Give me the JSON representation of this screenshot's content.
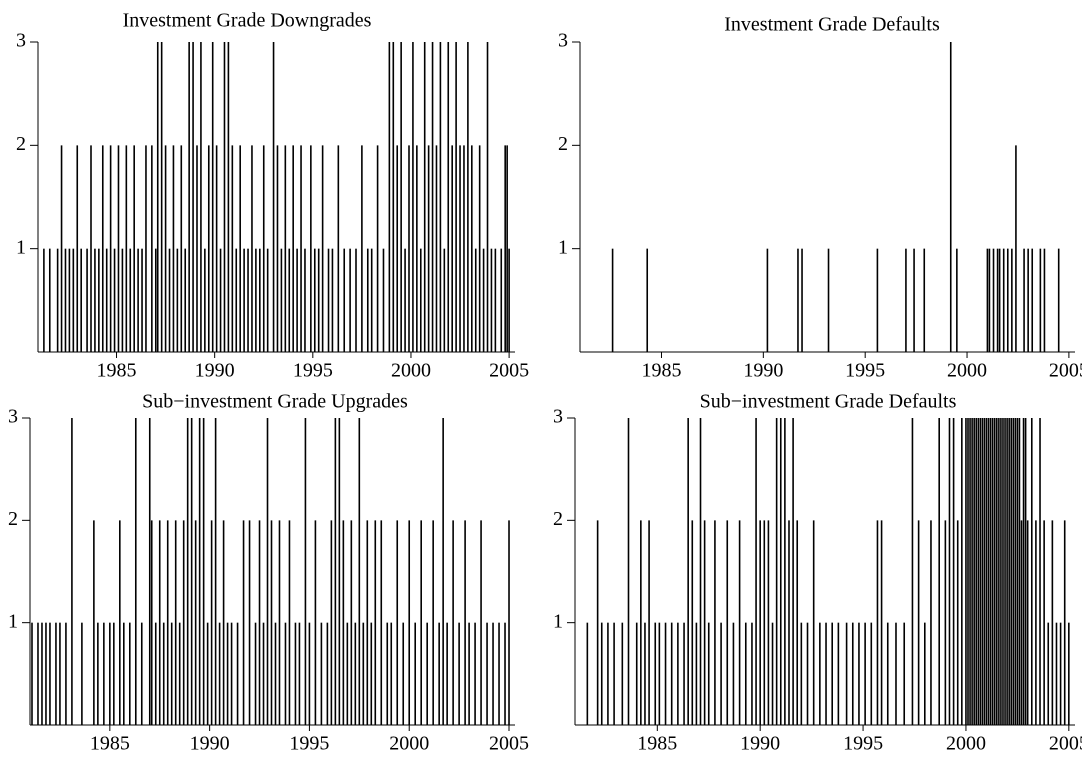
{
  "chart_data": [
    {
      "type": "spike",
      "title": "Investment Grade Downgrades",
      "color": "#000000",
      "xlim": [
        1981,
        2005.3
      ],
      "ylim": [
        0,
        3
      ],
      "xticks": [
        1985,
        1990,
        1995,
        2000,
        2005
      ],
      "yticks": [
        1,
        2,
        3
      ],
      "x": [
        1981.3,
        1981.6,
        1982.0,
        1982.2,
        1982.4,
        1982.6,
        1982.8,
        1983.0,
        1983.2,
        1983.5,
        1983.7,
        1983.9,
        1984.1,
        1984.3,
        1984.5,
        1984.7,
        1984.9,
        1985.1,
        1985.3,
        1985.5,
        1985.7,
        1985.9,
        1986.1,
        1986.3,
        1986.5,
        1986.8,
        1987.0,
        1987.1,
        1987.3,
        1987.5,
        1987.7,
        1987.9,
        1988.1,
        1988.3,
        1988.5,
        1988.7,
        1988.9,
        1989.1,
        1989.3,
        1989.5,
        1989.7,
        1989.9,
        1990.1,
        1990.3,
        1990.5,
        1990.7,
        1990.9,
        1991.1,
        1991.3,
        1991.5,
        1991.7,
        1991.9,
        1992.1,
        1992.3,
        1992.5,
        1992.7,
        1993.0,
        1993.2,
        1993.4,
        1993.6,
        1993.8,
        1994.0,
        1994.2,
        1994.4,
        1994.6,
        1994.9,
        1995.1,
        1995.3,
        1995.5,
        1995.8,
        1996.0,
        1996.3,
        1996.6,
        1996.9,
        1997.2,
        1997.5,
        1997.8,
        1998.0,
        1998.3,
        1998.6,
        1998.9,
        1999.1,
        1999.3,
        1999.5,
        1999.7,
        1999.9,
        2000.1,
        2000.3,
        2000.5,
        2000.7,
        2000.9,
        2001.1,
        2001.3,
        2001.5,
        2001.7,
        2001.9,
        2002.1,
        2002.3,
        2002.5,
        2002.7,
        2002.9,
        2003.1,
        2003.3,
        2003.5,
        2003.7,
        2003.9,
        2004.1,
        2004.3,
        2004.6,
        2004.8,
        2004.9,
        2005.0
      ],
      "values": [
        1,
        1,
        1,
        2,
        1,
        1,
        1,
        2,
        1,
        1,
        2,
        1,
        1,
        2,
        1,
        2,
        1,
        2,
        1,
        2,
        1,
        2,
        1,
        1,
        2,
        2,
        1,
        3,
        3,
        2,
        1,
        2,
        1,
        2,
        1,
        3,
        3,
        2,
        3,
        1,
        2,
        3,
        2,
        1,
        3,
        3,
        2,
        1,
        2,
        1,
        1,
        2,
        1,
        1,
        2,
        1,
        3,
        2,
        1,
        2,
        1,
        2,
        1,
        2,
        1,
        2,
        1,
        1,
        2,
        1,
        1,
        2,
        1,
        1,
        1,
        2,
        1,
        1,
        2,
        1,
        3,
        3,
        2,
        3,
        1,
        2,
        3,
        2,
        1,
        3,
        2,
        3,
        2,
        3,
        1,
        3,
        2,
        3,
        2,
        2,
        3,
        2,
        1,
        2,
        1,
        3,
        1,
        1,
        1,
        2,
        2,
        1
      ]
    },
    {
      "type": "spike",
      "title": "Investment Grade Defaults",
      "color": "#000000",
      "xlim": [
        1981,
        2005.3
      ],
      "ylim": [
        0,
        3
      ],
      "xticks": [
        1985,
        1990,
        1995,
        2000,
        2005
      ],
      "yticks": [
        1,
        2,
        3
      ],
      "x": [
        1982.6,
        1984.3,
        1990.2,
        1991.7,
        1991.9,
        1993.2,
        1995.6,
        1997.0,
        1997.4,
        1997.9,
        1999.2,
        1999.5,
        2001.0,
        2001.1,
        2001.3,
        2001.5,
        2001.6,
        2001.8,
        2002.0,
        2002.2,
        2002.4,
        2002.8,
        2003.0,
        2003.2,
        2003.6,
        2003.8,
        2004.5
      ],
      "values": [
        1,
        1,
        1,
        1,
        1,
        1,
        1,
        1,
        1,
        1,
        3,
        1,
        1,
        1,
        1,
        1,
        1,
        1,
        1,
        1,
        2,
        1,
        1,
        1,
        1,
        1,
        1
      ]
    },
    {
      "type": "spike",
      "title": "Sub−investment Grade Upgrades",
      "color": "#000000",
      "xlim": [
        1981,
        2005.3
      ],
      "ylim": [
        0,
        3
      ],
      "xticks": [
        1985,
        1990,
        1995,
        2000,
        2005
      ],
      "yticks": [
        1,
        2,
        3
      ],
      "x": [
        1981.1,
        1981.4,
        1981.6,
        1981.8,
        1982.0,
        1982.3,
        1982.5,
        1982.8,
        1983.1,
        1983.6,
        1984.2,
        1984.4,
        1984.7,
        1985.0,
        1985.2,
        1985.5,
        1985.7,
        1986.0,
        1986.3,
        1986.6,
        1987.0,
        1987.1,
        1987.3,
        1987.5,
        1987.7,
        1987.9,
        1988.1,
        1988.3,
        1988.5,
        1988.7,
        1988.9,
        1989.1,
        1989.3,
        1989.5,
        1989.7,
        1989.9,
        1990.1,
        1990.3,
        1990.5,
        1990.7,
        1990.9,
        1991.1,
        1991.4,
        1991.7,
        1992.0,
        1992.3,
        1992.5,
        1992.7,
        1992.9,
        1993.1,
        1993.3,
        1993.5,
        1993.8,
        1994.0,
        1994.3,
        1994.5,
        1994.8,
        1995.0,
        1995.3,
        1995.6,
        1995.9,
        1996.1,
        1996.3,
        1996.5,
        1996.7,
        1996.9,
        1997.1,
        1997.3,
        1997.5,
        1997.7,
        1997.9,
        1998.1,
        1998.3,
        1998.6,
        1998.9,
        1999.1,
        1999.4,
        1999.7,
        2000.0,
        2000.3,
        2000.6,
        2000.9,
        2001.2,
        2001.5,
        2001.7,
        2001.9,
        2002.2,
        2002.5,
        2002.8,
        2003.0,
        2003.3,
        2003.6,
        2003.9,
        2004.2,
        2004.5,
        2004.8,
        2005.0
      ],
      "values": [
        1,
        1,
        1,
        1,
        1,
        1,
        1,
        1,
        3,
        1,
        2,
        1,
        1,
        1,
        1,
        2,
        1,
        1,
        3,
        1,
        3,
        2,
        1,
        2,
        1,
        2,
        1,
        2,
        1,
        2,
        3,
        3,
        2,
        3,
        3,
        1,
        2,
        3,
        1,
        2,
        1,
        1,
        1,
        2,
        2,
        1,
        2,
        1,
        3,
        2,
        1,
        2,
        1,
        2,
        1,
        1,
        3,
        1,
        2,
        1,
        1,
        2,
        3,
        3,
        2,
        1,
        2,
        1,
        3,
        1,
        2,
        1,
        2,
        2,
        1,
        1,
        2,
        1,
        2,
        1,
        2,
        1,
        2,
        1,
        3,
        1,
        2,
        1,
        2,
        1,
        1,
        2,
        1,
        1,
        1,
        1,
        2
      ]
    },
    {
      "type": "spike",
      "title": "Sub−investment Grade Defaults",
      "color": "#000000",
      "xlim": [
        1981,
        2005.3
      ],
      "ylim": [
        0,
        3
      ],
      "xticks": [
        1985,
        1990,
        1995,
        2000,
        2005
      ],
      "yticks": [
        1,
        2,
        3
      ],
      "x": [
        1981.6,
        1982.1,
        1982.3,
        1982.6,
        1982.9,
        1983.3,
        1983.6,
        1984.0,
        1984.2,
        1984.4,
        1984.6,
        1984.9,
        1985.1,
        1985.4,
        1985.7,
        1986.0,
        1986.3,
        1986.5,
        1986.7,
        1986.9,
        1987.1,
        1987.3,
        1987.5,
        1987.8,
        1988.1,
        1988.4,
        1988.7,
        1989.0,
        1989.3,
        1989.6,
        1989.8,
        1990.0,
        1990.2,
        1990.4,
        1990.6,
        1990.8,
        1991.0,
        1991.2,
        1991.4,
        1991.6,
        1991.8,
        1992.0,
        1992.3,
        1992.6,
        1992.9,
        1993.2,
        1993.5,
        1993.8,
        1994.2,
        1994.5,
        1994.8,
        1995.1,
        1995.4,
        1995.7,
        1995.9,
        1996.2,
        1996.6,
        1997.0,
        1997.4,
        1997.7,
        1998.0,
        1998.3,
        1998.7,
        1999.0,
        1999.2,
        1999.4,
        1999.6,
        1999.8,
        2000.0,
        2000.1,
        2000.2,
        2000.3,
        2000.4,
        2000.5,
        2000.6,
        2000.7,
        2000.8,
        2000.9,
        2001.0,
        2001.1,
        2001.2,
        2001.3,
        2001.4,
        2001.5,
        2001.6,
        2001.7,
        2001.8,
        2001.9,
        2002.0,
        2002.1,
        2002.2,
        2002.3,
        2002.4,
        2002.5,
        2002.6,
        2002.7,
        2002.8,
        2002.9,
        2003.0,
        2003.2,
        2003.4,
        2003.6,
        2003.8,
        2004.0,
        2004.2,
        2004.4,
        2004.6,
        2004.8,
        2005.0
      ],
      "values": [
        1,
        2,
        1,
        1,
        1,
        1,
        3,
        1,
        2,
        1,
        2,
        1,
        1,
        1,
        1,
        1,
        1,
        3,
        2,
        1,
        3,
        2,
        1,
        2,
        1,
        2,
        1,
        2,
        1,
        1,
        3,
        2,
        2,
        2,
        1,
        3,
        3,
        3,
        2,
        3,
        2,
        1,
        1,
        2,
        1,
        1,
        1,
        1,
        1,
        1,
        1,
        1,
        1,
        2,
        2,
        1,
        1,
        1,
        3,
        2,
        1,
        2,
        3,
        2,
        3,
        3,
        2,
        3,
        3,
        3,
        3,
        3,
        3,
        3,
        3,
        3,
        3,
        3,
        3,
        3,
        3,
        3,
        3,
        3,
        3,
        3,
        3,
        3,
        3,
        3,
        3,
        3,
        3,
        3,
        3,
        2,
        3,
        3,
        2,
        3,
        2,
        3,
        2,
        1,
        2,
        1,
        1,
        2,
        1
      ]
    }
  ]
}
